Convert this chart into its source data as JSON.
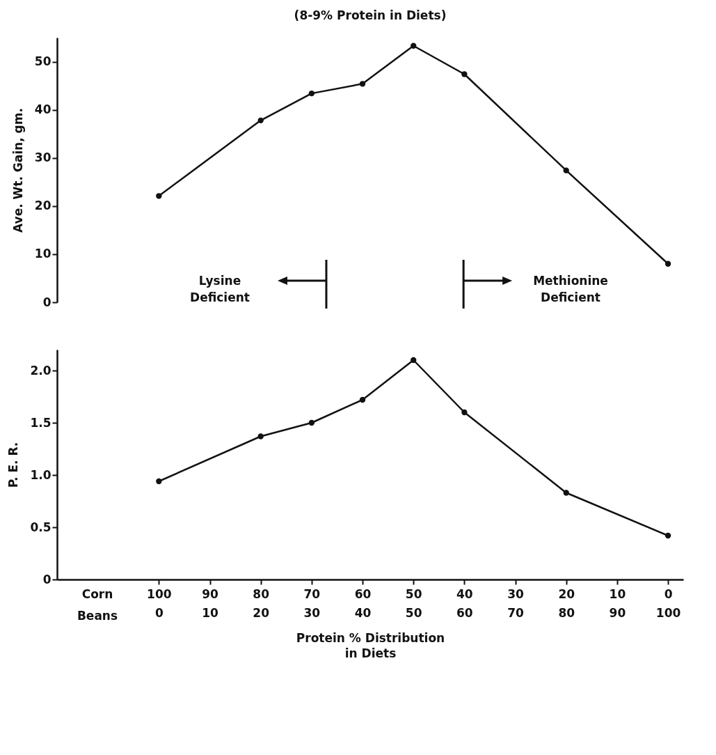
{
  "chart_data": [
    {
      "type": "line",
      "title": "(8-9% Protein in Diets)",
      "ylabel": "Ave. Wt. Gain, gm.",
      "x": [
        100,
        80,
        70,
        60,
        50,
        40,
        20,
        0
      ],
      "series": [
        {
          "color": "#111111",
          "values": [
            22.1,
            37.8,
            43.4,
            45.4,
            53.3,
            47.4,
            27.4,
            8.0
          ]
        }
      ],
      "xlim": [
        100,
        0
      ],
      "xticks": [
        100,
        90,
        80,
        70,
        60,
        50,
        40,
        30,
        20,
        10,
        0
      ],
      "ylim": [
        0,
        55
      ],
      "yticks": [
        0,
        10,
        20,
        30,
        40,
        50
      ],
      "tick_labels": "y",
      "grid": false,
      "marker": "circle",
      "line_style": "solid",
      "annotations": [
        "Lysine\nDeficient",
        "Methionine\nDeficient"
      ]
    },
    {
      "type": "line",
      "ylabel": "P. E. R.",
      "xlabel": "Protein % Distribution\nin Diets",
      "x": [
        100,
        80,
        70,
        60,
        50,
        40,
        20,
        0
      ],
      "series": [
        {
          "color": "#111111",
          "values": [
            0.94,
            1.37,
            1.5,
            1.72,
            2.1,
            1.6,
            0.83,
            0.42
          ]
        }
      ],
      "xlim": [
        120,
        -3
      ],
      "ylim": [
        0,
        2.2
      ],
      "yticks": [
        0,
        0.5,
        {
          "value": 1,
          "label": "1.0"
        },
        1.5,
        {
          "value": 2,
          "label": "2.0"
        }
      ],
      "xticks": [
        100,
        90,
        80,
        70,
        60,
        50,
        40,
        30,
        20,
        10,
        0
      ],
      "x2lim": [
        -20,
        103
      ],
      "x2ticks": [
        0,
        10,
        20,
        30,
        40,
        50,
        60,
        70,
        80,
        90,
        100
      ],
      "grid": false,
      "marker": "circle",
      "line_style": "solid",
      "annotations": [
        "Corn",
        "Beans"
      ]
    }
  ]
}
